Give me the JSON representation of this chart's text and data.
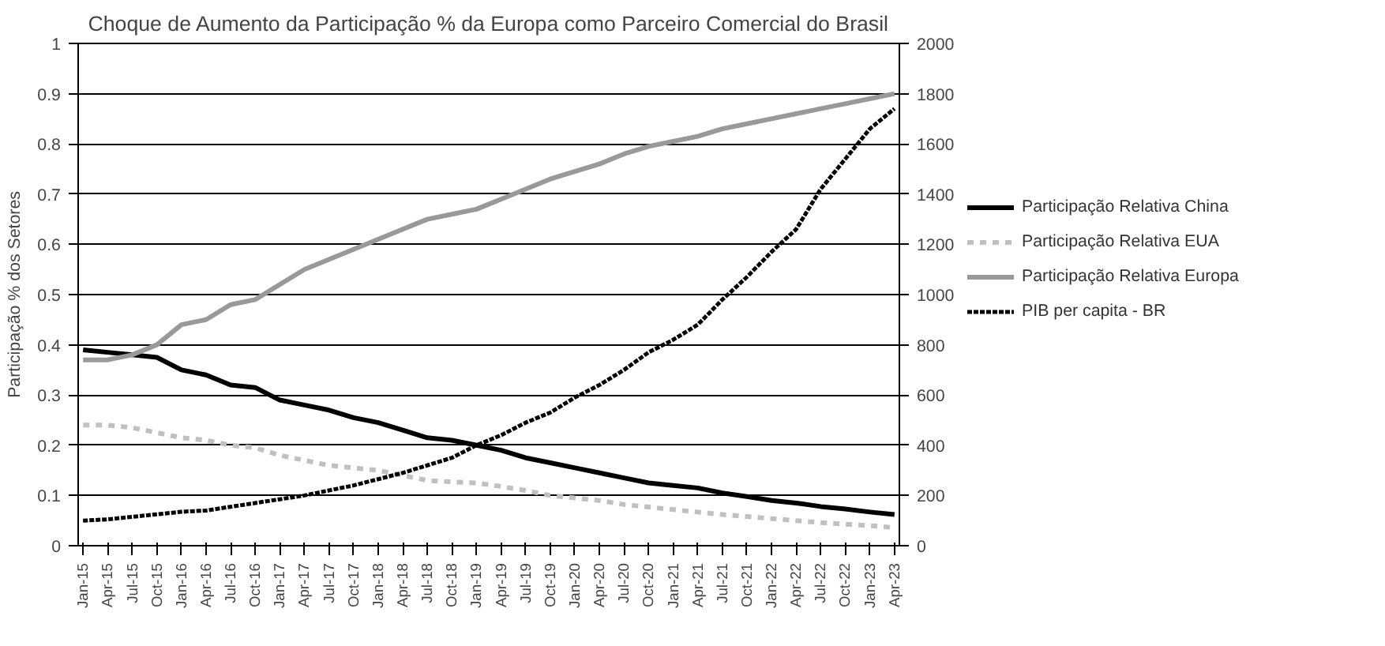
{
  "chart_data": {
    "type": "line",
    "title": "Choque de Aumento da Participação % da Europa como Parceiro Comercial do Brasil",
    "ylabel": "Participação % dos Setores",
    "categories": [
      "Jan-15",
      "Apr-15",
      "Jul-15",
      "Oct-15",
      "Jan-16",
      "Apr-16",
      "Jul-16",
      "Oct-16",
      "Jan-17",
      "Apr-17",
      "Jul-17",
      "Oct-17",
      "Jan-18",
      "Apr-18",
      "Jul-18",
      "Oct-18",
      "Jan-19",
      "Apr-19",
      "Jul-19",
      "Oct-19",
      "Jan-20",
      "Apr-20",
      "Jul-20",
      "Oct-20",
      "Jan-21",
      "Apr-21",
      "Jul-21",
      "Oct-21",
      "Jan-22",
      "Apr-22",
      "Jul-22",
      "Oct-22",
      "Jan-23",
      "Apr-23"
    ],
    "series": [
      {
        "name": "Participação Relativa China",
        "color": "#000000",
        "line_style": "solid",
        "values": [
          0.39,
          0.385,
          0.38,
          0.375,
          0.35,
          0.34,
          0.32,
          0.315,
          0.29,
          0.28,
          0.27,
          0.255,
          0.245,
          0.23,
          0.215,
          0.21,
          0.2,
          0.19,
          0.175,
          0.165,
          0.155,
          0.145,
          0.135,
          0.125,
          0.12,
          0.115,
          0.105,
          0.098,
          0.09,
          0.085,
          0.078,
          0.073,
          0.067,
          0.062
        ]
      },
      {
        "name": "Participação Relativa EUA",
        "color": "#c0c0c0",
        "line_style": "dashed",
        "values": [
          0.24,
          0.24,
          0.235,
          0.225,
          0.215,
          0.21,
          0.2,
          0.195,
          0.18,
          0.17,
          0.16,
          0.155,
          0.15,
          0.14,
          0.13,
          0.127,
          0.125,
          0.118,
          0.11,
          0.1,
          0.095,
          0.09,
          0.082,
          0.077,
          0.072,
          0.067,
          0.062,
          0.058,
          0.054,
          0.05,
          0.046,
          0.043,
          0.04,
          0.036
        ]
      },
      {
        "name": "Participação Relativa Europa",
        "color": "#999999",
        "line_style": "solid",
        "values": [
          0.37,
          0.37,
          0.38,
          0.4,
          0.44,
          0.45,
          0.48,
          0.49,
          0.52,
          0.55,
          0.57,
          0.59,
          0.61,
          0.63,
          0.65,
          0.66,
          0.67,
          0.69,
          0.71,
          0.73,
          0.745,
          0.76,
          0.78,
          0.795,
          0.805,
          0.815,
          0.83,
          0.84,
          0.85,
          0.86,
          0.87,
          0.88,
          0.89,
          0.9
        ]
      },
      {
        "name": "PIB per capita - BR",
        "color": "#000000",
        "line_style": "dotted",
        "axis": "y2",
        "values": [
          100,
          105,
          115,
          125,
          135,
          140,
          155,
          170,
          185,
          200,
          220,
          240,
          265,
          290,
          320,
          350,
          400,
          440,
          490,
          530,
          590,
          640,
          700,
          770,
          820,
          880,
          980,
          1070,
          1170,
          1260,
          1420,
          1540,
          1660,
          1740
        ]
      }
    ],
    "ylim": [
      0,
      1
    ],
    "yticks": [
      0,
      0.1,
      0.2,
      0.3,
      0.4,
      0.5,
      0.6,
      0.7,
      0.8,
      0.9,
      1
    ],
    "y2lim": [
      0,
      2000
    ],
    "y2ticks": [
      0,
      200,
      400,
      600,
      800,
      1000,
      1200,
      1400,
      1600,
      1800,
      2000
    ],
    "grid": "y",
    "legend": "right",
    "marker": "none"
  }
}
